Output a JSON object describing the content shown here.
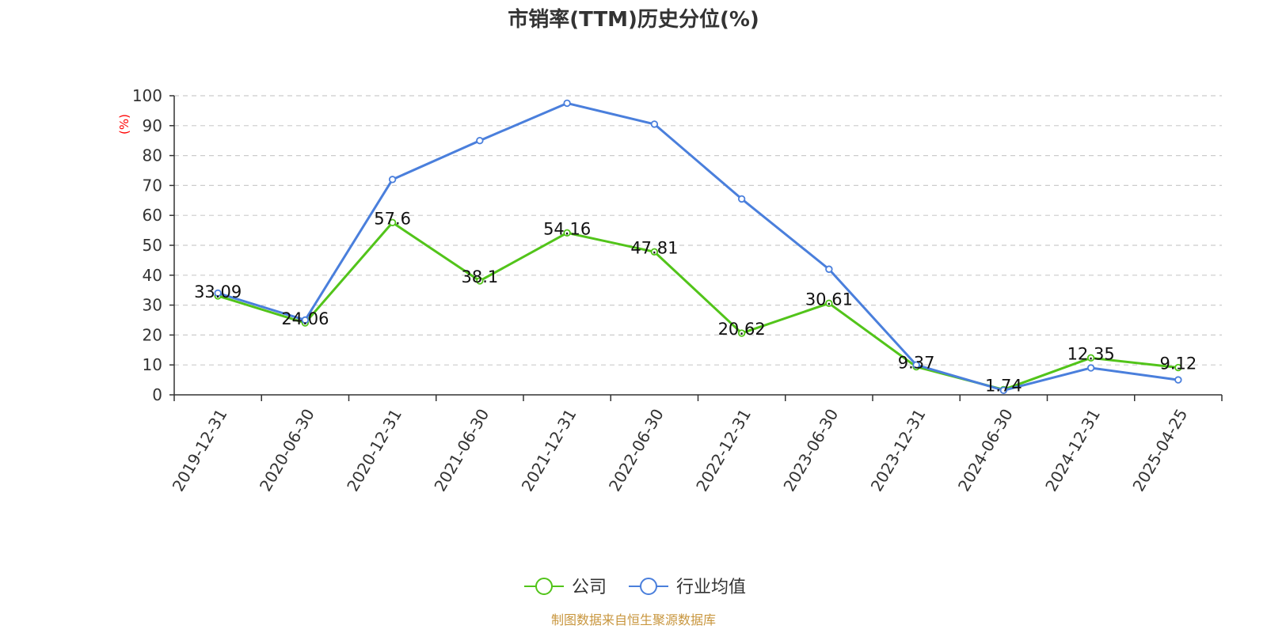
{
  "chart_data": {
    "type": "line",
    "title": "市销率(TTM)历史分位(%)",
    "ylabel": "(%)",
    "ylim": [
      0,
      100
    ],
    "yticks": [
      0,
      10,
      20,
      30,
      40,
      50,
      60,
      70,
      80,
      90,
      100
    ],
    "grid": true,
    "legend_position": "bottom",
    "categories": [
      "2019-12-31",
      "2020-06-30",
      "2020-12-31",
      "2021-06-30",
      "2021-12-31",
      "2022-06-30",
      "2022-12-31",
      "2023-06-30",
      "2023-12-31",
      "2024-06-30",
      "2024-12-31",
      "2025-04-25"
    ],
    "series": [
      {
        "name": "公司",
        "color": "#52c41a",
        "show_labels": true,
        "values": [
          33.09,
          24.06,
          57.6,
          38.1,
          54.16,
          47.81,
          20.62,
          30.61,
          9.37,
          1.74,
          12.35,
          9.12
        ]
      },
      {
        "name": "行业均值",
        "color": "#4a7fdc",
        "show_labels": false,
        "values": [
          34,
          25,
          72,
          85,
          97.5,
          90.5,
          65.5,
          42,
          10,
          1.5,
          9,
          5
        ]
      }
    ],
    "source": "制图数据来自恒生聚源数据库"
  }
}
